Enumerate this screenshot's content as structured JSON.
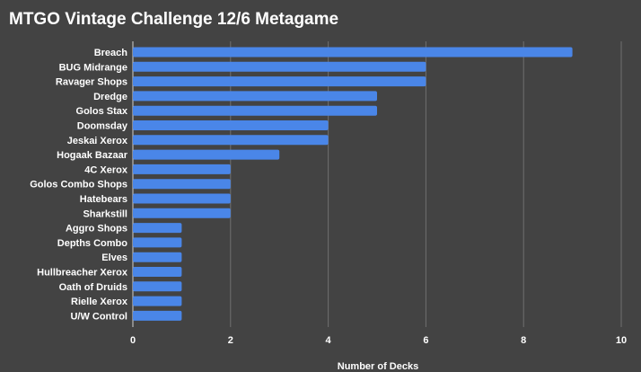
{
  "chart_data": {
    "type": "bar",
    "orientation": "horizontal",
    "title": "MTGO Vintage Challenge 12/6 Metagame",
    "xlabel": "Number of Decks",
    "ylabel": "",
    "xlim": [
      0,
      10
    ],
    "x_ticks": [
      0,
      2,
      4,
      6,
      8,
      10
    ],
    "grid": true,
    "legend": "none",
    "categories": [
      "Breach",
      "BUG Midrange",
      "Ravager Shops",
      "Dredge",
      "Golos Stax",
      "Doomsday",
      "Jeskai Xerox",
      "Hogaak Bazaar",
      "4C Xerox",
      "Golos Combo Shops",
      "Hatebears",
      "Sharkstill",
      "Aggro Shops",
      "Depths Combo",
      "Elves",
      "Hullbreacher Xerox",
      "Oath of Druids",
      "Rielle Xerox",
      "U/W Control"
    ],
    "values": [
      9,
      6,
      6,
      5,
      5,
      4,
      4,
      3,
      2,
      2,
      2,
      2,
      1,
      1,
      1,
      1,
      1,
      1,
      1
    ],
    "colors": {
      "background": "#434343",
      "bar": "#4a86e8",
      "text": "#ffffff",
      "grid": "#6f6f6f",
      "baseline": "#cfcfcf"
    }
  }
}
